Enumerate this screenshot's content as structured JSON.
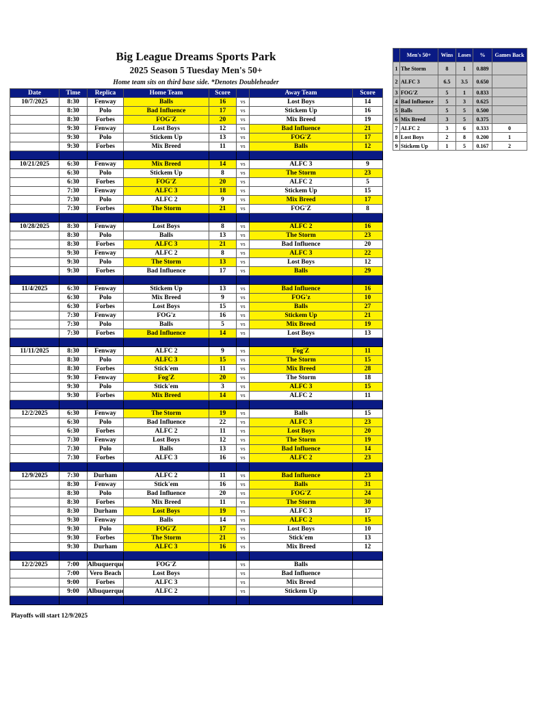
{
  "header": {
    "title": "Big League Dreams Sports Park",
    "subtitle": "2025 Season 5 Tuesday Men's 50+",
    "note": "Home team sits on third base side.  *Denotes Doubleheader"
  },
  "schedule": {
    "columns": [
      "Date",
      "Time",
      "Replica",
      "Home Team",
      "Score",
      "",
      "Away Team",
      "Score"
    ],
    "vs_label": "vs",
    "weeks": [
      {
        "date": "10/7/2025",
        "games": [
          {
            "time": "8:30",
            "field": "Fenway",
            "home": "Balls",
            "hs": "16",
            "away": "Lost Boys",
            "as": "14",
            "winner": "home"
          },
          {
            "time": "8:30",
            "field": "Polo",
            "home": "Bad Influence",
            "hs": "17",
            "away": "Stickem Up",
            "as": "16",
            "winner": "home"
          },
          {
            "time": "8:30",
            "field": "Forbes",
            "home": "FOG'Z",
            "hs": "20",
            "away": "Mix Breed",
            "as": "19",
            "winner": "home"
          },
          {
            "time": "9:30",
            "field": "Fenway",
            "home": "Lost Boys",
            "hs": "12",
            "away": "Bad Influence",
            "as": "21",
            "winner": "away"
          },
          {
            "time": "9:30",
            "field": "Polo",
            "home": "Stickem Up",
            "hs": "13",
            "away": "FOG'Z",
            "as": "17",
            "winner": "away"
          },
          {
            "time": "9:30",
            "field": "Forbes",
            "home": "Mix Breed",
            "hs": "11",
            "away": "Balls",
            "as": "12",
            "winner": "away"
          }
        ]
      },
      {
        "date": "10/21/2025",
        "games": [
          {
            "time": "6:30",
            "field": "Fenway",
            "home": "Mix Breed",
            "hs": "14",
            "away": "ALFC 3",
            "as": "9",
            "winner": "home"
          },
          {
            "time": "6:30",
            "field": "Polo",
            "home": "Stickem Up",
            "hs": "8",
            "away": "The Storm",
            "as": "23",
            "winner": "away"
          },
          {
            "time": "6:30",
            "field": "Forbes",
            "home": "FOG'Z",
            "hs": "20",
            "away": "ALFC 2",
            "as": "5",
            "winner": "home"
          },
          {
            "time": "7:30",
            "field": "Fenway",
            "home": "ALFC 3",
            "hs": "18",
            "away": "Stickem Up",
            "as": "15",
            "winner": "home"
          },
          {
            "time": "7:30",
            "field": "Polo",
            "home": "ALFC 2",
            "hs": "9",
            "away": "Mix Breed",
            "as": "17",
            "winner": "away"
          },
          {
            "time": "7:30",
            "field": "Forbes",
            "home": "The Storm",
            "hs": "21",
            "away": "FOG'Z",
            "as": "8",
            "winner": "home"
          }
        ]
      },
      {
        "date": "10/28/2025",
        "games": [
          {
            "time": "8:30",
            "field": "Fenway",
            "home": "Lost Boys",
            "hs": "8",
            "away": "ALFC 2",
            "as": "16",
            "winner": "away"
          },
          {
            "time": "8:30",
            "field": "Polo",
            "home": "Balls",
            "hs": "13",
            "away": "The Storm",
            "as": "23",
            "winner": "away"
          },
          {
            "time": "8:30",
            "field": "Forbes",
            "home": "ALFC 3",
            "hs": "21",
            "away": "Bad Influence",
            "as": "20",
            "winner": "home"
          },
          {
            "time": "9:30",
            "field": "Fenway",
            "home": "ALFC 2",
            "hs": "8",
            "away": "ALFC 3",
            "as": "22",
            "winner": "away"
          },
          {
            "time": "9:30",
            "field": "Polo",
            "home": "The Storm",
            "hs": "13",
            "away": "Lost Boys",
            "as": "12",
            "winner": "home"
          },
          {
            "time": "9:30",
            "field": "Forbes",
            "home": "Bad Influence",
            "hs": "17",
            "away": "Balls",
            "as": "29",
            "winner": "away"
          }
        ]
      },
      {
        "date": "11/4/2025",
        "games": [
          {
            "time": "6:30",
            "field": "Fenway",
            "home": "Stickem Up",
            "hs": "13",
            "away": "Bad Influence",
            "as": "16",
            "winner": "away"
          },
          {
            "time": "6:30",
            "field": "Polo",
            "home": "Mix Breed",
            "hs": "9",
            "away": "FOG'z",
            "as": "10",
            "winner": "away"
          },
          {
            "time": "6:30",
            "field": "Forbes",
            "home": "Lost Boys",
            "hs": "15",
            "away": "Balls",
            "as": "27",
            "winner": "away"
          },
          {
            "time": "7:30",
            "field": "Fenway",
            "home": "FOG'z",
            "hs": "16",
            "away": "Stickem Up",
            "as": "21",
            "winner": "away"
          },
          {
            "time": "7:30",
            "field": "Polo",
            "home": "Balls",
            "hs": "5",
            "away": "Mix Breed",
            "as": "19",
            "winner": "away"
          },
          {
            "time": "7:30",
            "field": "Forbes",
            "home": "Bad Influence",
            "hs": "14",
            "away": "Lost Boys",
            "as": "13",
            "winner": "home"
          }
        ]
      },
      {
        "date": "11/11/2025",
        "games": [
          {
            "time": "8:30",
            "field": "Fenway",
            "home": "ALFC 2",
            "hs": "9",
            "away": "Fog'Z",
            "as": "11",
            "winner": "away"
          },
          {
            "time": "8:30",
            "field": "Polo",
            "home": "ALFC 3",
            "hs": "15",
            "away": "The Storm",
            "as": "15",
            "winner": "both"
          },
          {
            "time": "8:30",
            "field": "Forbes",
            "home": "Stick'em",
            "hs": "11",
            "away": "Mix Breed",
            "as": "28",
            "winner": "away"
          },
          {
            "time": "9:30",
            "field": "Fenway",
            "home": "Fog'Z",
            "hs": "20",
            "away": "The Storm",
            "as": "18",
            "winner": "home"
          },
          {
            "time": "9:30",
            "field": "Polo",
            "home": "Stick'em",
            "hs": "3",
            "away": "ALFC 3",
            "as": "15",
            "winner": "away"
          },
          {
            "time": "9:30",
            "field": "Forbes",
            "home": "Mix Breed",
            "hs": "14",
            "away": "ALFC 2",
            "as": "11",
            "winner": "home"
          }
        ]
      },
      {
        "date": "12/2/2025",
        "games": [
          {
            "time": "6:30",
            "field": "Fenway",
            "home": "The Storm",
            "hs": "19",
            "away": "Balls",
            "as": "15",
            "winner": "home"
          },
          {
            "time": "6:30",
            "field": "Polo",
            "home": "Bad Influence",
            "hs": "22",
            "away": "ALFC 3",
            "as": "23",
            "winner": "away"
          },
          {
            "time": "6:30",
            "field": "Forbes",
            "home": "ALFC 2",
            "hs": "11",
            "away": "Lost Boys",
            "as": "20",
            "winner": "away"
          },
          {
            "time": "7:30",
            "field": "Fenway",
            "home": "Lost Boys",
            "hs": "12",
            "away": "The Storm",
            "as": "19",
            "winner": "away"
          },
          {
            "time": "7:30",
            "field": "Polo",
            "home": "Balls",
            "hs": "13",
            "away": "Bad Influence",
            "as": "14",
            "winner": "away"
          },
          {
            "time": "7:30",
            "field": "Forbes",
            "home": "ALFC 3",
            "hs": "16",
            "away": "ALFC 2",
            "as": "23",
            "winner": "away"
          }
        ]
      },
      {
        "date": "12/9/2025",
        "games": [
          {
            "time": "7:30",
            "field": "Durham",
            "home": "ALFC 2",
            "hs": "11",
            "away": "Bad  Influence",
            "as": "23",
            "winner": "away"
          },
          {
            "time": "8:30",
            "field": "Fenway",
            "home": "Stick'em",
            "hs": "16",
            "away": "Balls",
            "as": "31",
            "winner": "away"
          },
          {
            "time": "8:30",
            "field": "Polo",
            "home": "Bad  Influence",
            "hs": "20",
            "away": "FOG'Z",
            "as": "24",
            "winner": "away"
          },
          {
            "time": "8:30",
            "field": "Forbes",
            "home": "Mix Breed",
            "hs": "11",
            "away": "The Storm",
            "as": "30",
            "winner": "away"
          },
          {
            "time": "8:30",
            "field": "Durham",
            "home": "Lost Boys",
            "hs": "19",
            "away": "ALFC 3",
            "as": "17",
            "winner": "home"
          },
          {
            "time": "9:30",
            "field": "Fenway",
            "home": "Balls",
            "hs": "14",
            "away": "ALFC 2",
            "as": "15",
            "winner": "away"
          },
          {
            "time": "9:30",
            "field": "Polo",
            "home": "FOG'Z",
            "hs": "17",
            "away": "Lost Boys",
            "as": "10",
            "winner": "home"
          },
          {
            "time": "9:30",
            "field": "Forbes",
            "home": "The Storm",
            "hs": "21",
            "away": "Stick'em",
            "as": "13",
            "winner": "home"
          },
          {
            "time": "9:30",
            "field": "Durham",
            "home": "ALFC 3",
            "hs": "16",
            "away": "Mix Breed",
            "as": "12",
            "winner": "home"
          }
        ]
      },
      {
        "date": "12/2/2025",
        "games": [
          {
            "time": "7:00",
            "field": "Albuquerque",
            "home": "FOG'Z",
            "hs": "",
            "away": "Balls",
            "as": "",
            "winner": ""
          },
          {
            "time": "7:00",
            "field": "Vero Beach",
            "home": "Lost Boys",
            "hs": "",
            "away": "Bad Influence",
            "as": "",
            "winner": ""
          },
          {
            "time": "9:00",
            "field": "Forbes",
            "home": "ALFC 3",
            "hs": "",
            "away": "Mix Breed",
            "as": "",
            "winner": ""
          },
          {
            "time": "9:00",
            "field": "Albuquerque",
            "home": "ALFC 2",
            "hs": "",
            "away": "Stickem Up",
            "as": "",
            "winner": ""
          }
        ]
      }
    ]
  },
  "footer": "Playoffs will start 12/9/2025",
  "standings": {
    "columns": [
      "",
      "Men's 50+",
      "Wins",
      "Loses",
      "%",
      "Games Back"
    ],
    "rows": [
      {
        "rank": "1",
        "team": "The Storm",
        "w": "8",
        "l": "1",
        "pct": "0.889",
        "gb": ""
      },
      {
        "rank": "2",
        "team": "ALFC 3",
        "w": "6.5",
        "l": "3.5",
        "pct": "0.650",
        "gb": ""
      },
      {
        "rank": "3",
        "team": "FOG'Z",
        "w": "5",
        "l": "1",
        "pct": "0.833",
        "gb": ""
      },
      {
        "rank": "4",
        "team": "Bad Influence",
        "w": "5",
        "l": "3",
        "pct": "0.625",
        "gb": ""
      },
      {
        "rank": "5",
        "team": "Balls",
        "w": "5",
        "l": "5",
        "pct": "0.500",
        "gb": ""
      },
      {
        "rank": "6",
        "team": "Mix Breed",
        "w": "3",
        "l": "5",
        "pct": "0.375",
        "gb": ""
      },
      {
        "rank": "7",
        "team": "ALFC 2",
        "w": "3",
        "l": "6",
        "pct": "0.333",
        "gb": "0"
      },
      {
        "rank": "8",
        "team": "Lost Boys",
        "w": "2",
        "l": "8",
        "pct": "0.200",
        "gb": "1"
      },
      {
        "rank": "9",
        "team": "Stickem Up",
        "w": "1",
        "l": "5",
        "pct": "0.167",
        "gb": "2"
      }
    ]
  },
  "colors": {
    "header_bg": "#0a1a84",
    "winner_highlight": "#fff200",
    "top_six_bg": "#c8c8c8"
  }
}
